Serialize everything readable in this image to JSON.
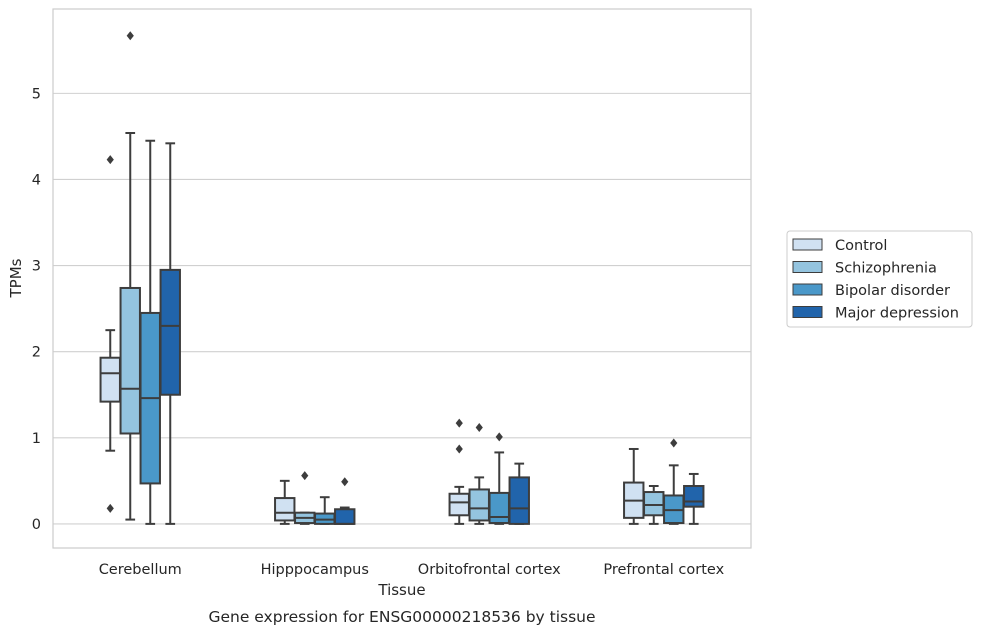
{
  "caption": "Gene expression for ENSG00000218536 by tissue",
  "chart_data": {
    "type": "box",
    "xlabel": "Tissue",
    "ylabel": "TPMs",
    "ylim": [
      -0.28,
      5.98
    ],
    "yticks": [
      0,
      1,
      2,
      3,
      4,
      5
    ],
    "grid": "horizontal",
    "legend_position": "right",
    "categories": [
      "Cerebellum",
      "Hipppocampus",
      "Orbitofrontal cortex",
      "Prefrontal cortex"
    ],
    "series": [
      {
        "name": "Control",
        "color": "#d0e1f2",
        "boxes": [
          {
            "whislo": 0.85,
            "q1": 1.42,
            "med": 1.75,
            "q3": 1.93,
            "whishi": 2.25,
            "fliers": [
              4.23,
              0.18
            ]
          },
          {
            "whislo": 0.0,
            "q1": 0.04,
            "med": 0.13,
            "q3": 0.3,
            "whishi": 0.5,
            "fliers": []
          },
          {
            "whislo": 0.0,
            "q1": 0.1,
            "med": 0.25,
            "q3": 0.35,
            "whishi": 0.43,
            "fliers": [
              1.17,
              0.87
            ]
          },
          {
            "whislo": 0.0,
            "q1": 0.07,
            "med": 0.27,
            "q3": 0.48,
            "whishi": 0.87,
            "fliers": []
          }
        ]
      },
      {
        "name": "Schizophrenia",
        "color": "#94c4df",
        "boxes": [
          {
            "whislo": 0.05,
            "q1": 1.05,
            "med": 1.57,
            "q3": 2.74,
            "whishi": 4.54,
            "fliers": [
              5.67
            ]
          },
          {
            "whislo": 0.0,
            "q1": 0.01,
            "med": 0.07,
            "q3": 0.13,
            "whishi": 0.13,
            "fliers": [
              0.56
            ]
          },
          {
            "whislo": 0.0,
            "q1": 0.04,
            "med": 0.18,
            "q3": 0.4,
            "whishi": 0.54,
            "fliers": [
              1.12
            ]
          },
          {
            "whislo": 0.0,
            "q1": 0.1,
            "med": 0.22,
            "q3": 0.37,
            "whishi": 0.44,
            "fliers": []
          }
        ]
      },
      {
        "name": "Bipolar disorder",
        "color": "#4a98c9",
        "boxes": [
          {
            "whislo": 0.0,
            "q1": 0.47,
            "med": 1.46,
            "q3": 2.45,
            "whishi": 4.45,
            "fliers": []
          },
          {
            "whislo": 0.0,
            "q1": 0.0,
            "med": 0.05,
            "q3": 0.12,
            "whishi": 0.31,
            "fliers": []
          },
          {
            "whislo": 0.0,
            "q1": 0.01,
            "med": 0.08,
            "q3": 0.36,
            "whishi": 0.83,
            "fliers": [
              1.01
            ]
          },
          {
            "whislo": 0.0,
            "q1": 0.01,
            "med": 0.16,
            "q3": 0.33,
            "whishi": 0.68,
            "fliers": [
              0.94
            ]
          }
        ]
      },
      {
        "name": "Major depression",
        "color": "#2164ab",
        "boxes": [
          {
            "whislo": 0.0,
            "q1": 1.5,
            "med": 2.3,
            "q3": 2.95,
            "whishi": 4.42,
            "fliers": []
          },
          {
            "whislo": 0.0,
            "q1": 0.0,
            "med": 0.0,
            "q3": 0.17,
            "whishi": 0.19,
            "fliers": [
              0.49
            ]
          },
          {
            "whislo": 0.0,
            "q1": 0.0,
            "med": 0.18,
            "q3": 0.54,
            "whishi": 0.7,
            "fliers": []
          },
          {
            "whislo": 0.0,
            "q1": 0.2,
            "med": 0.26,
            "q3": 0.44,
            "whishi": 0.58,
            "fliers": []
          }
        ]
      }
    ]
  }
}
